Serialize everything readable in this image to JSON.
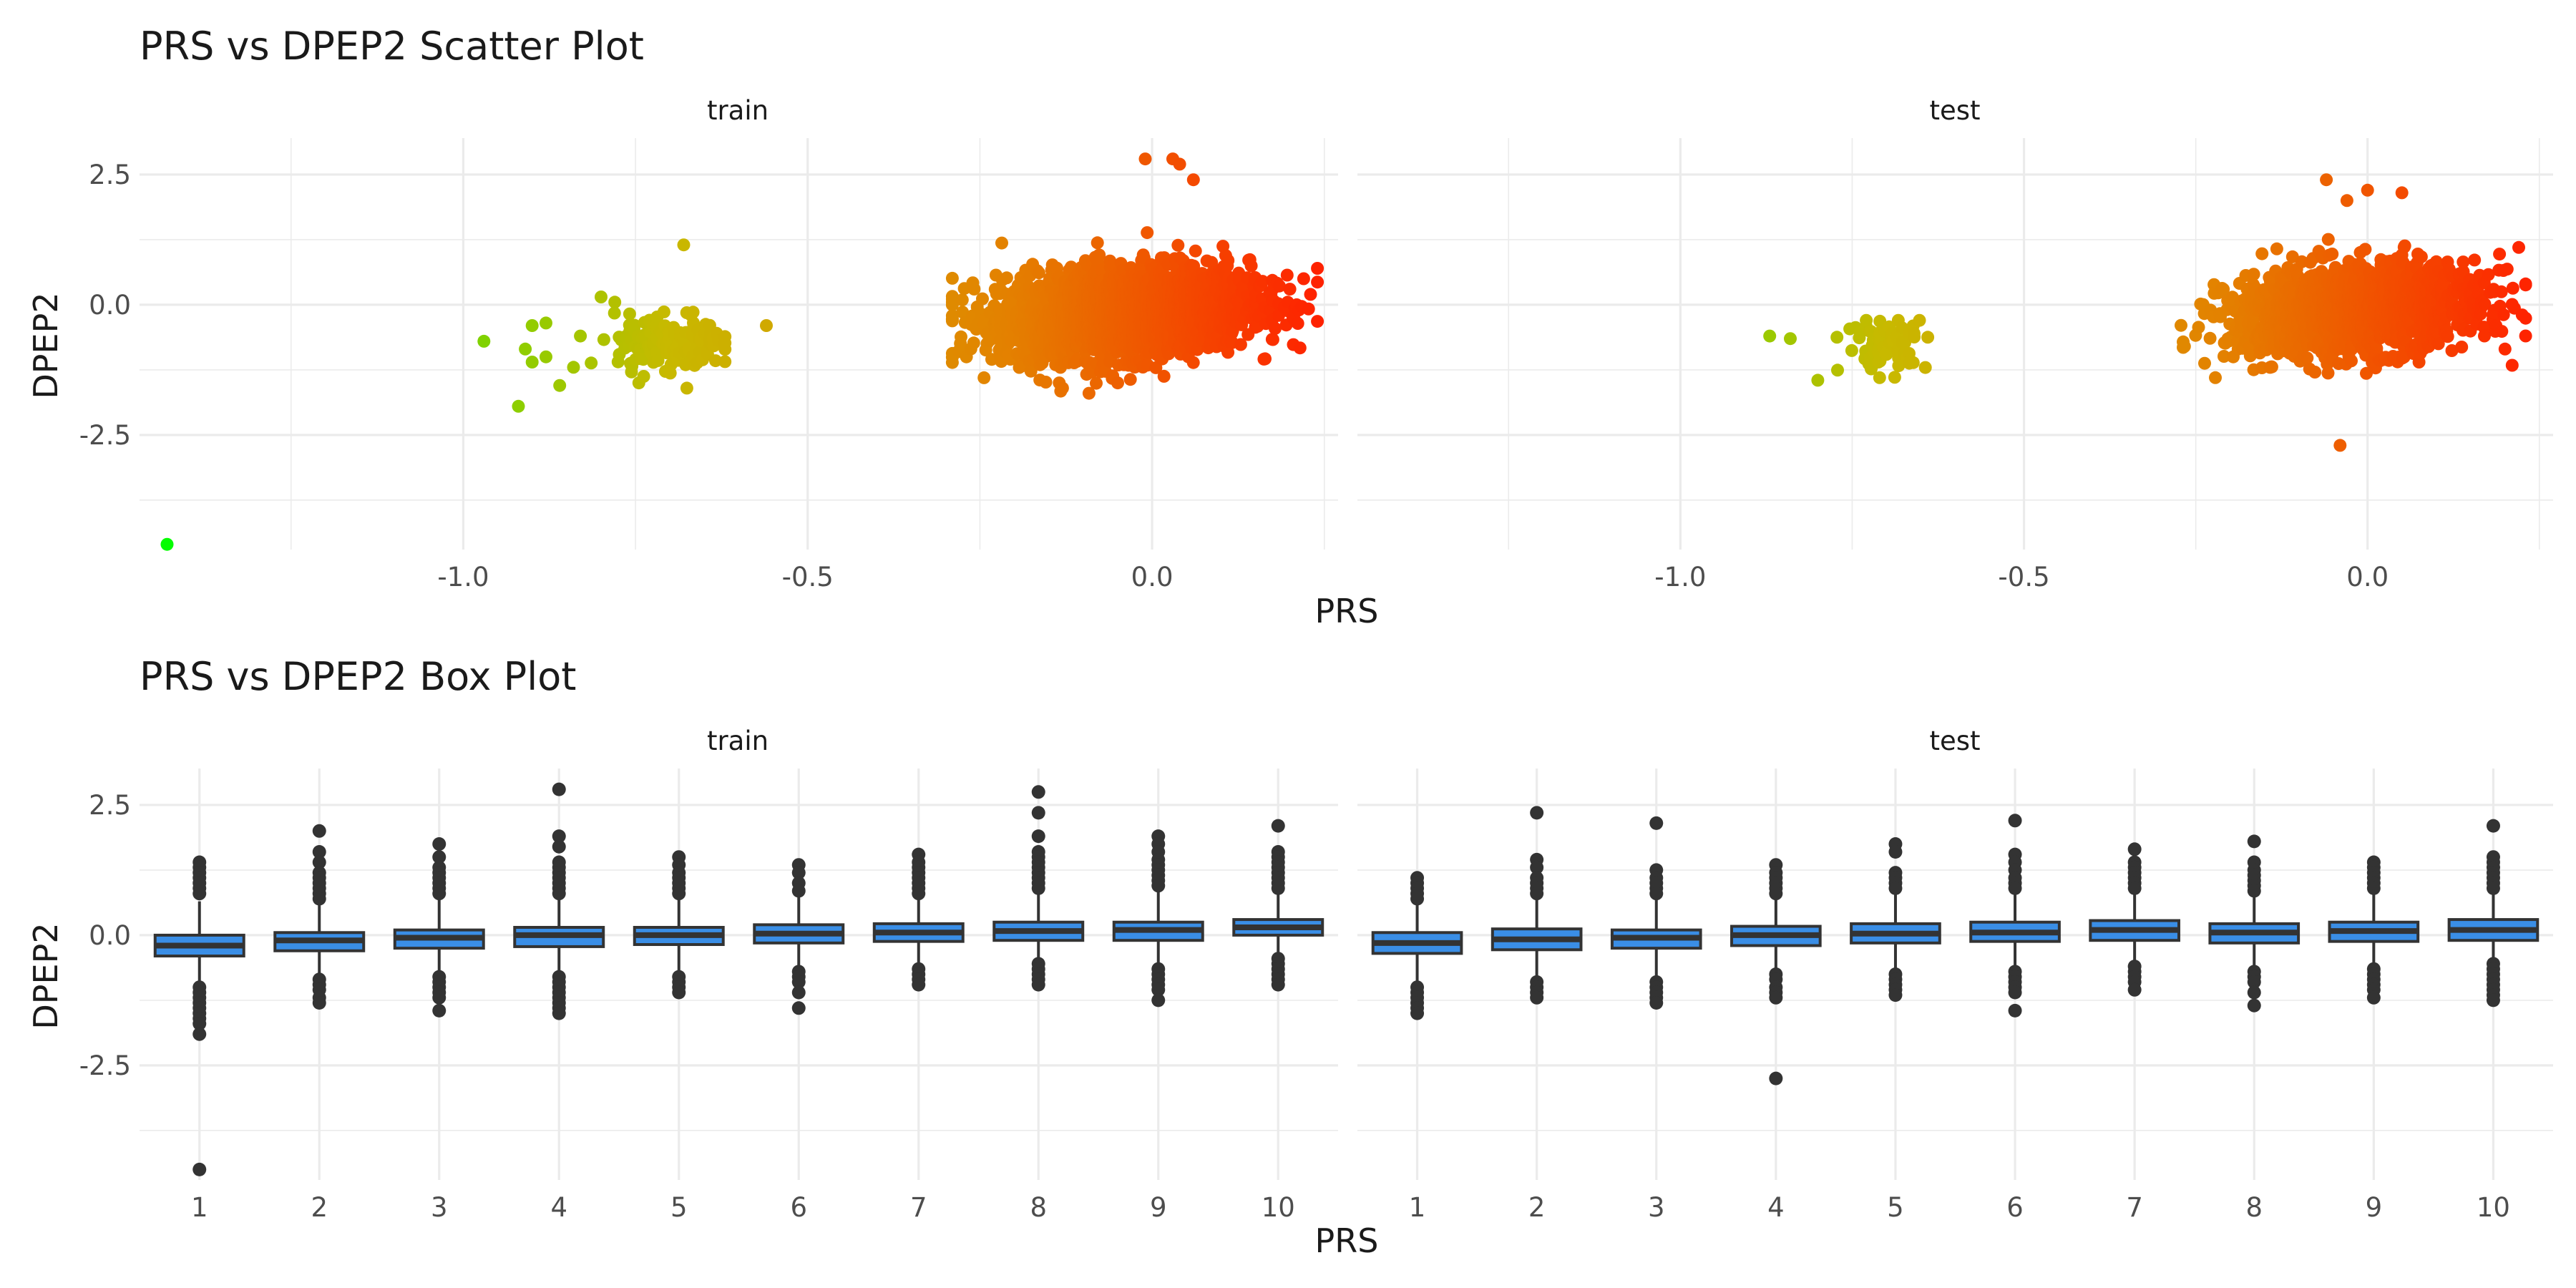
{
  "chart_data": [
    {
      "type": "scatter",
      "title": "PRS vs DPEP2 Scatter Plot",
      "xlabel": "PRS",
      "ylabel": "DPEP2",
      "xlim": [
        -1.47,
        0.27
      ],
      "ylim": [
        -4.7,
        3.2
      ],
      "x_ticks": [
        "-1.0",
        "-0.5",
        "0.0"
      ],
      "x_tick_values": [
        -1.0,
        -0.5,
        0.0
      ],
      "y_ticks": [
        "2.5",
        "0.0",
        "-2.5"
      ],
      "y_tick_values": [
        2.5,
        0.0,
        -2.5
      ],
      "grid": true,
      "legend": "none",
      "color_low": "#00ff00",
      "color_high": "#ff2000",
      "panels": [
        {
          "name": "train",
          "clusters": [
            {
              "x_mean": -0.04,
              "x_sd": 0.09,
              "y_mean": -0.15,
              "y_sd": 0.42,
              "count": 2600,
              "x_range": [
                -0.29,
                0.24
              ],
              "y_range": [
                -1.7,
                1.6
              ]
            },
            {
              "x_mean": -0.7,
              "x_sd": 0.04,
              "y_mean": -0.75,
              "y_sd": 0.3,
              "count": 150,
              "x_range": [
                -0.82,
                -0.62
              ],
              "y_range": [
                -1.6,
                0.1
              ]
            }
          ],
          "points": [
            {
              "x": -1.43,
              "y": -4.6
            },
            {
              "x": 0.03,
              "y": 2.8
            },
            {
              "x": 0.04,
              "y": 2.7
            },
            {
              "x": -0.01,
              "y": 2.8
            },
            {
              "x": 0.06,
              "y": 2.4
            },
            {
              "x": -0.68,
              "y": 1.15
            },
            {
              "x": -0.56,
              "y": -0.4
            },
            {
              "x": -0.97,
              "y": -0.7
            },
            {
              "x": -0.92,
              "y": -1.95
            },
            {
              "x": -0.91,
              "y": -0.85
            },
            {
              "x": -0.9,
              "y": -1.1
            },
            {
              "x": -0.9,
              "y": -0.4
            },
            {
              "x": -0.88,
              "y": -0.35
            },
            {
              "x": -0.88,
              "y": -1.0
            },
            {
              "x": -0.86,
              "y": -1.55
            },
            {
              "x": -0.84,
              "y": -1.2
            },
            {
              "x": -0.83,
              "y": -0.6
            },
            {
              "x": -0.8,
              "y": 0.15
            },
            {
              "x": -0.78,
              "y": 0.05
            },
            {
              "x": 0.2,
              "y": 0.3
            },
            {
              "x": 0.22,
              "y": 0.5
            },
            {
              "x": 0.24,
              "y": 0.7
            },
            {
              "x": 0.23,
              "y": 0.2
            },
            {
              "x": 0.21,
              "y": 0.0
            },
            {
              "x": -0.28,
              "y": -0.9
            },
            {
              "x": -0.13,
              "y": -1.6
            },
            {
              "x": -0.05,
              "y": -1.5
            }
          ]
        },
        {
          "name": "test",
          "clusters": [
            {
              "x_mean": -0.02,
              "x_sd": 0.09,
              "y_mean": -0.1,
              "y_sd": 0.42,
              "count": 1500,
              "x_range": [
                -0.28,
                0.23
              ],
              "y_range": [
                -1.4,
                1.6
              ]
            },
            {
              "x_mean": -0.7,
              "x_sd": 0.03,
              "y_mean": -0.75,
              "y_sd": 0.25,
              "count": 70,
              "x_range": [
                -0.8,
                -0.64
              ],
              "y_range": [
                -1.4,
                -0.3
              ]
            }
          ],
          "points": [
            {
              "x": -0.06,
              "y": 2.4
            },
            {
              "x": -0.03,
              "y": 2.0
            },
            {
              "x": 0.0,
              "y": 2.2
            },
            {
              "x": 0.05,
              "y": 2.15
            },
            {
              "x": -0.04,
              "y": -2.7
            },
            {
              "x": 0.22,
              "y": 1.1
            },
            {
              "x": 0.23,
              "y": 0.4
            },
            {
              "x": 0.2,
              "y": -0.85
            },
            {
              "x": -0.87,
              "y": -0.6
            },
            {
              "x": -0.84,
              "y": -0.65
            },
            {
              "x": -0.8,
              "y": -1.45
            },
            {
              "x": -0.66,
              "y": -0.55
            }
          ]
        }
      ]
    },
    {
      "type": "box",
      "title": "PRS vs DPEP2 Box Plot",
      "xlabel": "PRS",
      "ylabel": "DPEP2",
      "categories": [
        "1",
        "2",
        "3",
        "4",
        "5",
        "6",
        "7",
        "8",
        "9",
        "10"
      ],
      "ylim": [
        -4.7,
        3.2
      ],
      "y_ticks": [
        "2.5",
        "0.0",
        "-2.5"
      ],
      "y_tick_values": [
        2.5,
        0.0,
        -2.5
      ],
      "grid": true,
      "legend": "none",
      "box_fill": "#3a8ee6",
      "box_line": "#333333",
      "panels": [
        {
          "name": "train",
          "boxes": [
            {
              "q1": -0.4,
              "median": -0.2,
              "q3": 0.0,
              "wmin": -0.95,
              "wmax": 0.65,
              "outliers": [
                1.4,
                1.3,
                1.2,
                1.1,
                1.0,
                0.9,
                0.8,
                -1.0,
                -1.1,
                -1.2,
                -1.3,
                -1.4,
                -1.5,
                -1.6,
                -1.7,
                -1.9,
                -4.5
              ]
            },
            {
              "q1": -0.3,
              "median": -0.1,
              "q3": 0.05,
              "wmin": -0.8,
              "wmax": 0.65,
              "outliers": [
                2.0,
                1.6,
                1.4,
                1.2,
                1.1,
                1.0,
                0.9,
                0.8,
                0.7,
                -0.85,
                -0.95,
                -1.05,
                -1.2,
                -1.3
              ]
            },
            {
              "q1": -0.25,
              "median": -0.05,
              "q3": 0.1,
              "wmin": -0.75,
              "wmax": 0.7,
              "outliers": [
                1.75,
                1.5,
                1.3,
                1.2,
                1.1,
                1.0,
                0.9,
                0.8,
                -0.8,
                -0.9,
                -1.0,
                -1.1,
                -1.2,
                -1.45
              ]
            },
            {
              "q1": -0.22,
              "median": 0.0,
              "q3": 0.15,
              "wmin": -0.7,
              "wmax": 0.75,
              "outliers": [
                2.8,
                1.9,
                1.7,
                1.4,
                1.3,
                1.2,
                1.1,
                1.0,
                0.9,
                0.8,
                -0.8,
                -0.9,
                -1.0,
                -1.1,
                -1.2,
                -1.3,
                -1.4,
                -1.5
              ]
            },
            {
              "q1": -0.18,
              "median": 0.0,
              "q3": 0.15,
              "wmin": -0.75,
              "wmax": 0.75,
              "outliers": [
                1.5,
                1.35,
                1.2,
                1.1,
                1.0,
                0.9,
                0.8,
                -0.8,
                -0.9,
                -1.0,
                -1.1
              ]
            },
            {
              "q1": -0.15,
              "median": 0.03,
              "q3": 0.2,
              "wmin": -0.65,
              "wmax": 0.75,
              "outliers": [
                1.35,
                1.2,
                1.0,
                0.85,
                -0.7,
                -0.8,
                -0.9,
                -1.1,
                -1.4
              ]
            },
            {
              "q1": -0.12,
              "median": 0.05,
              "q3": 0.22,
              "wmin": -0.6,
              "wmax": 0.75,
              "outliers": [
                1.55,
                1.4,
                1.3,
                1.2,
                1.1,
                1.0,
                0.9,
                0.8,
                -0.65,
                -0.75,
                -0.85,
                -0.95
              ]
            },
            {
              "q1": -0.1,
              "median": 0.08,
              "q3": 0.25,
              "wmin": -0.5,
              "wmax": 0.8,
              "outliers": [
                2.75,
                2.35,
                1.9,
                1.6,
                1.5,
                1.4,
                1.3,
                1.2,
                1.1,
                1.0,
                0.9,
                -0.55,
                -0.65,
                -0.75,
                -0.85,
                -0.95
              ]
            },
            {
              "q1": -0.1,
              "median": 0.1,
              "q3": 0.25,
              "wmin": -0.6,
              "wmax": 0.85,
              "outliers": [
                1.9,
                1.75,
                1.6,
                1.45,
                1.35,
                1.25,
                1.15,
                1.05,
                0.95,
                -0.65,
                -0.75,
                -0.85,
                -0.95,
                -1.05,
                -1.25
              ]
            },
            {
              "q1": 0.0,
              "median": 0.15,
              "q3": 0.3,
              "wmin": -0.4,
              "wmax": 0.8,
              "outliers": [
                2.1,
                1.6,
                1.5,
                1.4,
                1.3,
                1.2,
                1.1,
                1.0,
                0.9,
                -0.45,
                -0.55,
                -0.65,
                -0.75,
                -0.85,
                -0.95
              ]
            }
          ]
        },
        {
          "name": "test",
          "boxes": [
            {
              "q1": -0.35,
              "median": -0.15,
              "q3": 0.05,
              "wmin": -0.95,
              "wmax": 0.65,
              "outliers": [
                1.1,
                1.0,
                0.9,
                0.8,
                0.7,
                -1.0,
                -1.1,
                -1.2,
                -1.3,
                -1.4,
                -1.5
              ]
            },
            {
              "q1": -0.28,
              "median": -0.08,
              "q3": 0.12,
              "wmin": -0.85,
              "wmax": 0.7,
              "outliers": [
                2.35,
                1.45,
                1.3,
                1.1,
                1.0,
                0.9,
                0.8,
                -0.9,
                -1.0,
                -1.1,
                -1.2
              ]
            },
            {
              "q1": -0.25,
              "median": -0.05,
              "q3": 0.1,
              "wmin": -0.85,
              "wmax": 0.7,
              "outliers": [
                2.15,
                1.25,
                1.1,
                1.0,
                0.9,
                0.8,
                -0.9,
                -1.0,
                -1.1,
                -1.2,
                -1.3
              ]
            },
            {
              "q1": -0.2,
              "median": 0.0,
              "q3": 0.17,
              "wmin": -0.7,
              "wmax": 0.75,
              "outliers": [
                1.35,
                1.2,
                1.1,
                1.0,
                0.9,
                0.8,
                -0.75,
                -0.85,
                -1.0,
                -1.1,
                -1.2,
                -2.75
              ]
            },
            {
              "q1": -0.15,
              "median": 0.03,
              "q3": 0.22,
              "wmin": -0.7,
              "wmax": 0.8,
              "outliers": [
                1.75,
                1.6,
                1.2,
                1.1,
                1.0,
                0.9,
                -0.75,
                -0.85,
                -0.95,
                -1.05,
                -1.15
              ]
            },
            {
              "q1": -0.12,
              "median": 0.05,
              "q3": 0.25,
              "wmin": -0.6,
              "wmax": 0.85,
              "outliers": [
                2.2,
                1.55,
                1.4,
                1.25,
                1.1,
                1.0,
                0.9,
                -0.7,
                -0.8,
                -0.9,
                -1.0,
                -1.1,
                -1.45
              ]
            },
            {
              "q1": -0.1,
              "median": 0.1,
              "q3": 0.28,
              "wmin": -0.55,
              "wmax": 0.85,
              "outliers": [
                1.65,
                1.4,
                1.3,
                1.2,
                1.1,
                1.0,
                0.9,
                -0.6,
                -0.7,
                -0.8,
                -0.9,
                -1.05
              ]
            },
            {
              "q1": -0.15,
              "median": 0.05,
              "q3": 0.22,
              "wmin": -0.65,
              "wmax": 0.8,
              "outliers": [
                1.8,
                1.4,
                1.25,
                1.15,
                1.05,
                0.95,
                0.85,
                -0.7,
                -0.8,
                -0.9,
                -1.1,
                -1.35
              ]
            },
            {
              "q1": -0.12,
              "median": 0.08,
              "q3": 0.25,
              "wmin": -0.6,
              "wmax": 0.85,
              "outliers": [
                1.4,
                1.3,
                1.2,
                1.1,
                1.0,
                0.9,
                -0.65,
                -0.75,
                -0.85,
                -0.95,
                -1.05,
                -1.2
              ]
            },
            {
              "q1": -0.1,
              "median": 0.1,
              "q3": 0.3,
              "wmin": -0.5,
              "wmax": 0.85,
              "outliers": [
                2.1,
                1.5,
                1.4,
                1.3,
                1.2,
                1.1,
                1.0,
                0.9,
                -0.55,
                -0.65,
                -0.75,
                -0.85,
                -0.95,
                -1.05,
                -1.15,
                -1.25
              ]
            }
          ]
        }
      ]
    }
  ]
}
